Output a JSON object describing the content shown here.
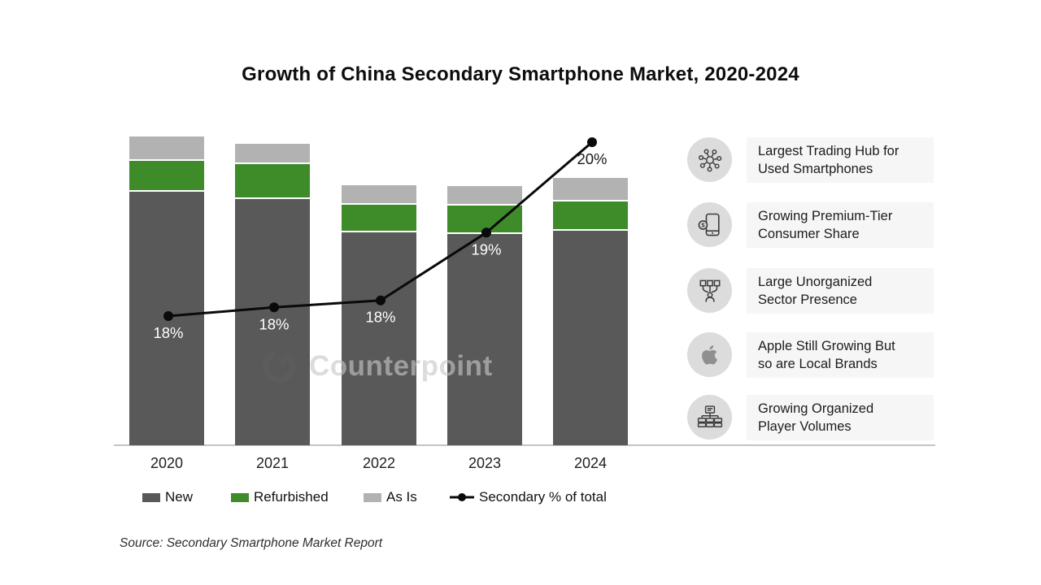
{
  "title": "Growth of China Secondary Smartphone Market, 2020-2024",
  "source_note": "Source: Secondary Smartphone Market Report",
  "watermark_text": "Counterpoint",
  "chart_data": {
    "type": "stacked-bar-with-line",
    "title": "Growth of China Secondary Smartphone Market, 2020-2024",
    "categories": [
      "2020",
      "2021",
      "2022",
      "2023",
      "2024"
    ],
    "units": "estimated relative volume (chart shows no value axis)",
    "grid": false,
    "legend_position": "bottom",
    "bar_series": [
      {
        "name": "New",
        "color": "#595959",
        "values": [
          312,
          303,
          262,
          260,
          264
        ]
      },
      {
        "name": "Refurbished",
        "color": "#3e8b29",
        "values": [
          38,
          43,
          34,
          35,
          36
        ]
      },
      {
        "name": "As Is",
        "color": "#b2b2b2",
        "values": [
          30,
          25,
          24,
          24,
          29
        ]
      }
    ],
    "line_series": {
      "name": "Secondary % of total",
      "color": "#0a0a0a",
      "values_pct": [
        18,
        18,
        18,
        19,
        20
      ],
      "point_labels": [
        "18%",
        "18%",
        "18%",
        "19%",
        "20%"
      ],
      "plot_values_pct": [
        18.0,
        18.1,
        18.18,
        18.96,
        20.0
      ]
    }
  },
  "legend": {
    "items": [
      {
        "label": "New",
        "swatch": "rect",
        "color": "#595959"
      },
      {
        "label": "Refurbished",
        "swatch": "rect",
        "color": "#3e8b29"
      },
      {
        "label": "As Is",
        "swatch": "rect",
        "color": "#b2b2b2"
      },
      {
        "label": "Secondary % of total",
        "swatch": "line-marker",
        "color": "#0a0a0a"
      }
    ]
  },
  "highlights": [
    {
      "icon": "network-hub-icon",
      "line1": "Largest Trading Hub for",
      "line2": "Used Smartphones"
    },
    {
      "icon": "smartphone-dollar-icon",
      "line1": "Growing Premium-Tier",
      "line2": "Consumer Share"
    },
    {
      "icon": "unorganized-network-icon",
      "line1": "Large Unorganized",
      "line2": "Sector Presence"
    },
    {
      "icon": "apple-logo-icon",
      "line1": "Apple Still Growing But",
      "line2": "so are Local Brands"
    },
    {
      "icon": "org-chart-icon",
      "line1": "Growing Organized",
      "line2": "Player Volumes"
    }
  ]
}
